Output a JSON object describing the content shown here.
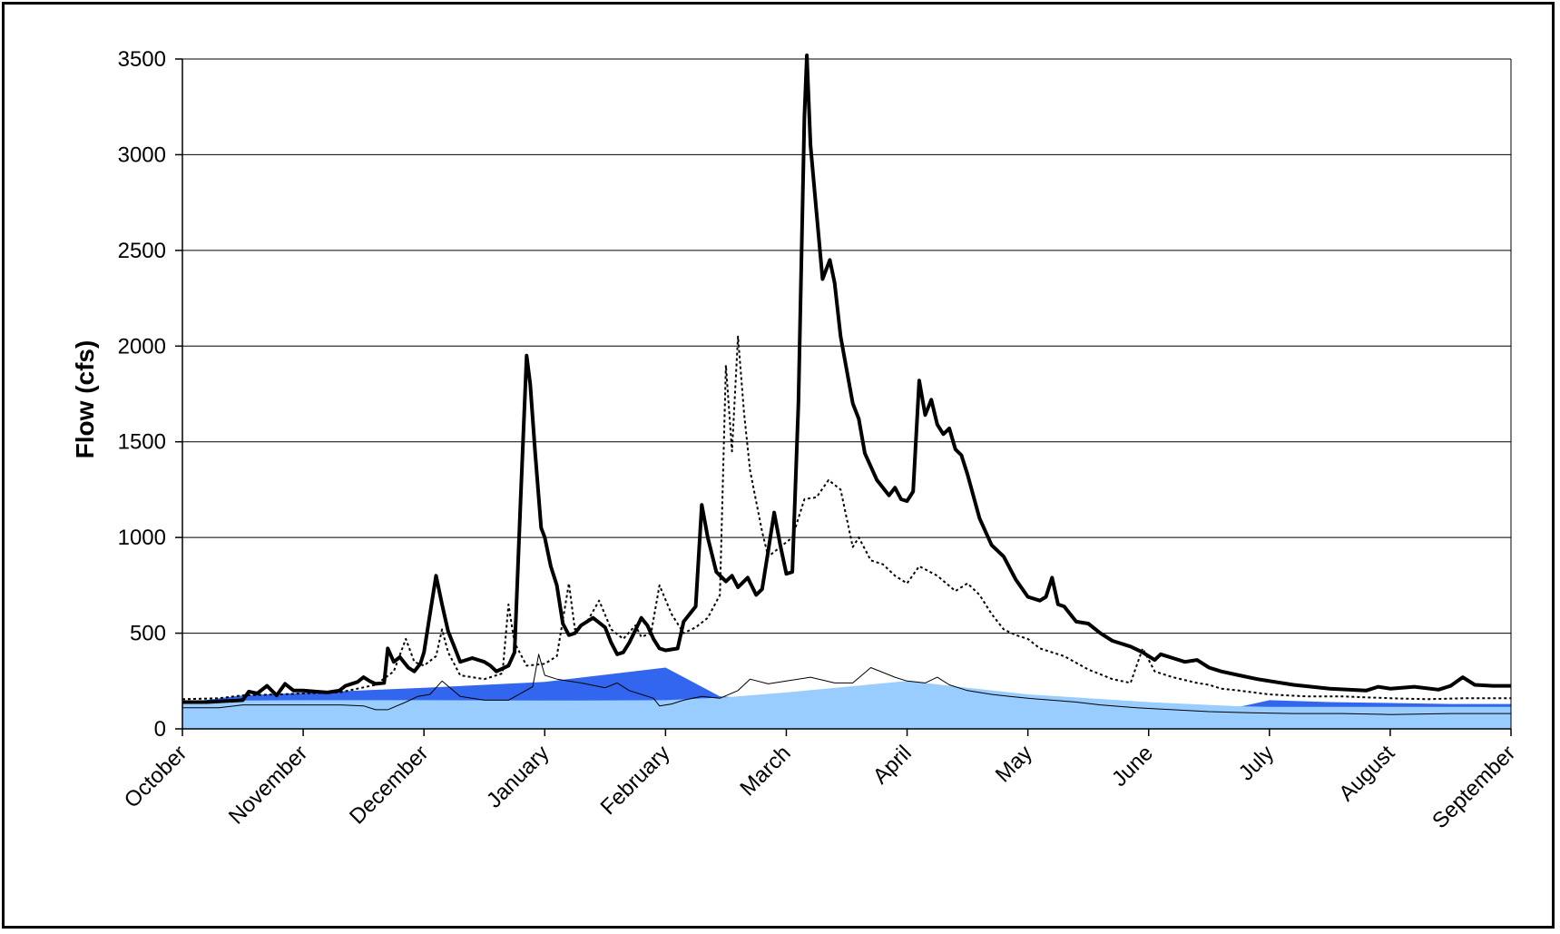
{
  "chart_data": {
    "type": "line",
    "title": "",
    "xlabel": "",
    "ylabel": "Flow (cfs)",
    "ylim": [
      0,
      3500
    ],
    "yticks": [
      0,
      500,
      1000,
      1500,
      2000,
      2500,
      3000,
      3500
    ],
    "xlim": [
      0,
      11
    ],
    "month_labels": [
      "October",
      "November",
      "December",
      "January",
      "February",
      "March",
      "April",
      "May",
      "June",
      "July",
      "August",
      "September"
    ],
    "grid": "horizontal",
    "legend": "none",
    "colors": {
      "area_light": "#99ccff",
      "area_dark": "#3366ee",
      "line": "#000000"
    },
    "areas": [
      {
        "style": "dark-blue",
        "points": [
          [
            0,
            135
          ],
          [
            0.5,
            175
          ],
          [
            2.0,
            215
          ],
          [
            3.0,
            245
          ],
          [
            4.0,
            320
          ],
          [
            4.45,
            170
          ],
          [
            4.6,
            165
          ]
        ]
      },
      {
        "style": "dark-blue",
        "points": [
          [
            8.75,
            115
          ],
          [
            9.0,
            150
          ],
          [
            9.5,
            140
          ],
          [
            10.0,
            135
          ],
          [
            10.5,
            130
          ],
          [
            11.0,
            130
          ]
        ]
      },
      {
        "style": "light-blue",
        "points": [
          [
            0,
            140
          ],
          [
            0.5,
            148
          ],
          [
            1,
            150
          ],
          [
            2,
            150
          ],
          [
            3,
            148
          ],
          [
            4,
            150
          ],
          [
            4.5,
            165
          ],
          [
            5,
            190
          ],
          [
            5.5,
            220
          ],
          [
            6,
            250
          ],
          [
            6.5,
            215
          ],
          [
            7,
            180
          ],
          [
            7.5,
            160
          ],
          [
            8,
            140
          ],
          [
            8.5,
            125
          ],
          [
            8.75,
            118
          ],
          [
            9,
            115
          ],
          [
            9.5,
            115
          ],
          [
            10,
            115
          ],
          [
            10.5,
            115
          ],
          [
            11,
            115
          ]
        ]
      }
    ],
    "series": [
      {
        "style": "thick",
        "points": [
          [
            0,
            140
          ],
          [
            0.2,
            140
          ],
          [
            0.35,
            145
          ],
          [
            0.5,
            150
          ],
          [
            0.55,
            195
          ],
          [
            0.62,
            185
          ],
          [
            0.7,
            225
          ],
          [
            0.78,
            175
          ],
          [
            0.85,
            235
          ],
          [
            0.92,
            200
          ],
          [
            1,
            200
          ],
          [
            1.1,
            195
          ],
          [
            1.2,
            190
          ],
          [
            1.3,
            200
          ],
          [
            1.35,
            225
          ],
          [
            1.45,
            245
          ],
          [
            1.5,
            270
          ],
          [
            1.55,
            250
          ],
          [
            1.6,
            235
          ],
          [
            1.67,
            240
          ],
          [
            1.7,
            420
          ],
          [
            1.75,
            350
          ],
          [
            1.8,
            375
          ],
          [
            1.87,
            320
          ],
          [
            1.92,
            300
          ],
          [
            1.97,
            340
          ],
          [
            2.0,
            400
          ],
          [
            2.05,
            600
          ],
          [
            2.1,
            800
          ],
          [
            2.15,
            650
          ],
          [
            2.2,
            510
          ],
          [
            2.25,
            430
          ],
          [
            2.3,
            350
          ],
          [
            2.4,
            370
          ],
          [
            2.5,
            350
          ],
          [
            2.55,
            330
          ],
          [
            2.6,
            300
          ],
          [
            2.7,
            330
          ],
          [
            2.75,
            400
          ],
          [
            2.8,
            1200
          ],
          [
            2.85,
            1950
          ],
          [
            2.88,
            1800
          ],
          [
            2.92,
            1450
          ],
          [
            2.97,
            1050
          ],
          [
            3.0,
            1000
          ],
          [
            3.05,
            850
          ],
          [
            3.1,
            750
          ],
          [
            3.15,
            550
          ],
          [
            3.2,
            490
          ],
          [
            3.25,
            500
          ],
          [
            3.3,
            540
          ],
          [
            3.4,
            580
          ],
          [
            3.5,
            530
          ],
          [
            3.55,
            450
          ],
          [
            3.6,
            390
          ],
          [
            3.65,
            400
          ],
          [
            3.7,
            450
          ],
          [
            3.8,
            580
          ],
          [
            3.85,
            540
          ],
          [
            3.9,
            470
          ],
          [
            3.95,
            420
          ],
          [
            4.0,
            410
          ],
          [
            4.05,
            415
          ],
          [
            4.1,
            420
          ],
          [
            4.15,
            560
          ],
          [
            4.25,
            640
          ],
          [
            4.3,
            1170
          ],
          [
            4.35,
            1000
          ],
          [
            4.42,
            820
          ],
          [
            4.5,
            770
          ],
          [
            4.55,
            800
          ],
          [
            4.6,
            740
          ],
          [
            4.68,
            790
          ],
          [
            4.75,
            700
          ],
          [
            4.8,
            730
          ],
          [
            4.85,
            930
          ],
          [
            4.9,
            1130
          ],
          [
            4.95,
            960
          ],
          [
            5.0,
            810
          ],
          [
            5.05,
            820
          ],
          [
            5.1,
            1700
          ],
          [
            5.15,
            3200
          ],
          [
            5.17,
            3550
          ],
          [
            5.2,
            3050
          ],
          [
            5.25,
            2700
          ],
          [
            5.3,
            2350
          ],
          [
            5.36,
            2450
          ],
          [
            5.4,
            2330
          ],
          [
            5.45,
            2050
          ],
          [
            5.55,
            1700
          ],
          [
            5.6,
            1620
          ],
          [
            5.65,
            1440
          ],
          [
            5.75,
            1300
          ],
          [
            5.85,
            1220
          ],
          [
            5.9,
            1260
          ],
          [
            5.95,
            1200
          ],
          [
            6.0,
            1190
          ],
          [
            6.05,
            1240
          ],
          [
            6.1,
            1820
          ],
          [
            6.15,
            1640
          ],
          [
            6.2,
            1720
          ],
          [
            6.25,
            1590
          ],
          [
            6.3,
            1540
          ],
          [
            6.35,
            1570
          ],
          [
            6.4,
            1460
          ],
          [
            6.45,
            1430
          ],
          [
            6.5,
            1330
          ],
          [
            6.6,
            1100
          ],
          [
            6.7,
            960
          ],
          [
            6.8,
            900
          ],
          [
            6.9,
            780
          ],
          [
            7.0,
            690
          ],
          [
            7.1,
            670
          ],
          [
            7.15,
            690
          ],
          [
            7.2,
            790
          ],
          [
            7.25,
            650
          ],
          [
            7.3,
            640
          ],
          [
            7.4,
            560
          ],
          [
            7.5,
            550
          ],
          [
            7.6,
            500
          ],
          [
            7.7,
            460
          ],
          [
            7.85,
            430
          ],
          [
            7.95,
            400
          ],
          [
            8.05,
            360
          ],
          [
            8.1,
            390
          ],
          [
            8.2,
            370
          ],
          [
            8.3,
            350
          ],
          [
            8.4,
            360
          ],
          [
            8.5,
            320
          ],
          [
            8.6,
            300
          ],
          [
            8.75,
            280
          ],
          [
            8.9,
            260
          ],
          [
            9.0,
            250
          ],
          [
            9.2,
            230
          ],
          [
            9.5,
            210
          ],
          [
            9.8,
            200
          ],
          [
            9.9,
            220
          ],
          [
            10.0,
            210
          ],
          [
            10.2,
            220
          ],
          [
            10.4,
            205
          ],
          [
            10.5,
            225
          ],
          [
            10.6,
            270
          ],
          [
            10.7,
            230
          ],
          [
            10.85,
            225
          ],
          [
            11.0,
            225
          ]
        ]
      },
      {
        "style": "dotted",
        "points": [
          [
            0,
            155
          ],
          [
            0.3,
            160
          ],
          [
            0.5,
            175
          ],
          [
            0.8,
            180
          ],
          [
            1,
            185
          ],
          [
            1.3,
            190
          ],
          [
            1.6,
            230
          ],
          [
            1.75,
            300
          ],
          [
            1.85,
            470
          ],
          [
            1.92,
            350
          ],
          [
            2.0,
            330
          ],
          [
            2.1,
            380
          ],
          [
            2.15,
            520
          ],
          [
            2.2,
            400
          ],
          [
            2.3,
            280
          ],
          [
            2.5,
            260
          ],
          [
            2.65,
            290
          ],
          [
            2.7,
            650
          ],
          [
            2.75,
            450
          ],
          [
            2.85,
            330
          ],
          [
            3.0,
            340
          ],
          [
            3.1,
            380
          ],
          [
            3.2,
            760
          ],
          [
            3.25,
            520
          ],
          [
            3.35,
            560
          ],
          [
            3.45,
            670
          ],
          [
            3.55,
            520
          ],
          [
            3.65,
            470
          ],
          [
            3.75,
            540
          ],
          [
            3.8,
            480
          ],
          [
            3.88,
            500
          ],
          [
            3.95,
            750
          ],
          [
            4.05,
            600
          ],
          [
            4.15,
            500
          ],
          [
            4.25,
            530
          ],
          [
            4.35,
            580
          ],
          [
            4.45,
            700
          ],
          [
            4.5,
            1900
          ],
          [
            4.55,
            1450
          ],
          [
            4.6,
            2050
          ],
          [
            4.65,
            1650
          ],
          [
            4.7,
            1350
          ],
          [
            4.8,
            1030
          ],
          [
            4.85,
            900
          ],
          [
            4.95,
            950
          ],
          [
            5.05,
            1000
          ],
          [
            5.15,
            1200
          ],
          [
            5.25,
            1210
          ],
          [
            5.35,
            1300
          ],
          [
            5.45,
            1250
          ],
          [
            5.55,
            950
          ],
          [
            5.6,
            1000
          ],
          [
            5.7,
            880
          ],
          [
            5.8,
            860
          ],
          [
            5.9,
            800
          ],
          [
            6.0,
            760
          ],
          [
            6.1,
            850
          ],
          [
            6.25,
            800
          ],
          [
            6.4,
            720
          ],
          [
            6.5,
            760
          ],
          [
            6.6,
            700
          ],
          [
            6.7,
            600
          ],
          [
            6.8,
            520
          ],
          [
            6.9,
            490
          ],
          [
            7.0,
            470
          ],
          [
            7.1,
            420
          ],
          [
            7.3,
            380
          ],
          [
            7.5,
            310
          ],
          [
            7.7,
            260
          ],
          [
            7.85,
            240
          ],
          [
            7.95,
            420
          ],
          [
            8.05,
            300
          ],
          [
            8.2,
            270
          ],
          [
            8.4,
            240
          ],
          [
            8.5,
            230
          ],
          [
            8.6,
            210
          ],
          [
            8.75,
            200
          ],
          [
            9.0,
            180
          ],
          [
            9.3,
            170
          ],
          [
            9.6,
            170
          ],
          [
            10.0,
            160
          ],
          [
            10.3,
            155
          ],
          [
            10.6,
            160
          ],
          [
            10.85,
            160
          ],
          [
            11.0,
            160
          ]
        ]
      },
      {
        "style": "thin",
        "points": [
          [
            0,
            110
          ],
          [
            0.3,
            110
          ],
          [
            0.5,
            125
          ],
          [
            1,
            125
          ],
          [
            1.3,
            125
          ],
          [
            1.5,
            120
          ],
          [
            1.6,
            100
          ],
          [
            1.7,
            100
          ],
          [
            1.85,
            140
          ],
          [
            1.95,
            170
          ],
          [
            2.05,
            180
          ],
          [
            2.15,
            250
          ],
          [
            2.3,
            170
          ],
          [
            2.5,
            150
          ],
          [
            2.7,
            150
          ],
          [
            2.9,
            220
          ],
          [
            2.95,
            390
          ],
          [
            3.0,
            280
          ],
          [
            3.1,
            260
          ],
          [
            3.3,
            240
          ],
          [
            3.5,
            215
          ],
          [
            3.6,
            240
          ],
          [
            3.7,
            200
          ],
          [
            3.9,
            160
          ],
          [
            3.95,
            120
          ],
          [
            4.05,
            130
          ],
          [
            4.15,
            150
          ],
          [
            4.3,
            170
          ],
          [
            4.45,
            160
          ],
          [
            4.6,
            200
          ],
          [
            4.7,
            260
          ],
          [
            4.85,
            235
          ],
          [
            5.0,
            250
          ],
          [
            5.2,
            270
          ],
          [
            5.4,
            240
          ],
          [
            5.55,
            240
          ],
          [
            5.7,
            320
          ],
          [
            5.9,
            270
          ],
          [
            6.0,
            250
          ],
          [
            6.15,
            240
          ],
          [
            6.25,
            270
          ],
          [
            6.35,
            230
          ],
          [
            6.5,
            200
          ],
          [
            6.7,
            180
          ],
          [
            6.85,
            170
          ],
          [
            7.0,
            160
          ],
          [
            7.2,
            150
          ],
          [
            7.4,
            140
          ],
          [
            7.6,
            125
          ],
          [
            7.9,
            110
          ],
          [
            8.2,
            100
          ],
          [
            8.5,
            90
          ],
          [
            8.8,
            85
          ],
          [
            9.2,
            80
          ],
          [
            9.6,
            80
          ],
          [
            10.0,
            75
          ],
          [
            10.5,
            80
          ],
          [
            11.0,
            80
          ]
        ]
      }
    ]
  }
}
